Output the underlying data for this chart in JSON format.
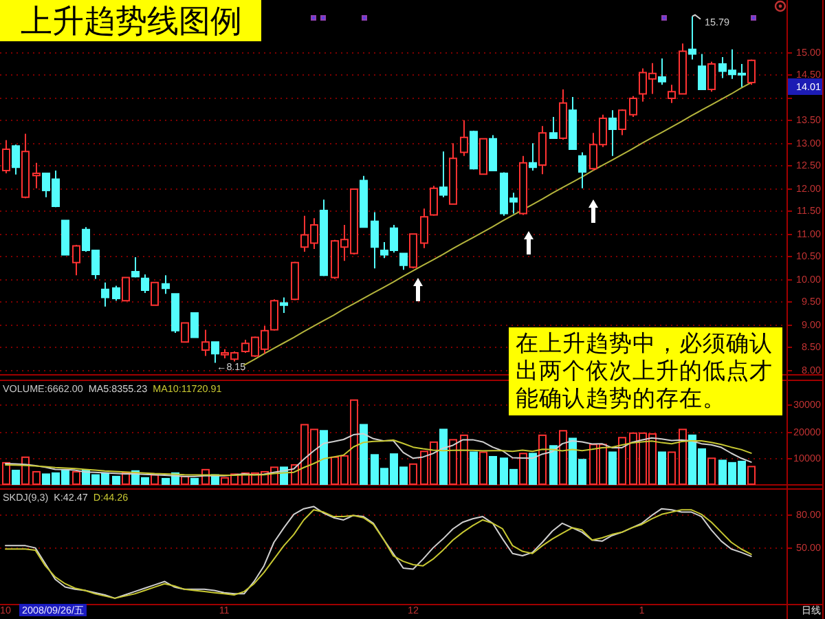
{
  "chart_data": [
    {
      "type": "candlestick",
      "title": "上升趋势线图例",
      "categories": [
        null,
        null,
        null,
        null,
        null,
        null,
        null,
        null,
        null,
        null,
        null,
        null,
        null,
        null,
        null,
        null,
        null,
        null,
        null,
        null,
        null,
        null,
        null,
        null,
        null,
        null,
        null,
        null,
        null,
        null,
        null,
        null,
        null,
        null,
        null,
        null,
        null,
        null,
        null,
        null,
        null,
        null,
        null,
        null,
        null,
        null,
        null,
        null,
        null,
        null,
        null,
        null,
        null,
        null,
        null,
        null,
        null,
        null,
        null,
        null,
        null,
        null,
        null,
        null,
        null,
        null,
        null,
        null,
        null,
        null,
        null,
        null,
        null,
        null,
        null,
        null
      ],
      "ohlc": [
        [
          12.39,
          13.06,
          12.33,
          12.86
        ],
        [
          12.93,
          12.96,
          12.3,
          12.46
        ],
        [
          11.8,
          13.2,
          11.78,
          12.81
        ],
        [
          12.28,
          12.56,
          12.0,
          12.33
        ],
        [
          12.33,
          12.33,
          11.8,
          11.95
        ],
        [
          12.2,
          12.39,
          11.58,
          11.6
        ],
        [
          11.29,
          11.29,
          10.52,
          10.53
        ],
        [
          10.36,
          10.75,
          10.08,
          10.73
        ],
        [
          11.09,
          11.14,
          10.6,
          10.63
        ],
        [
          10.63,
          10.63,
          10.0,
          10.1
        ],
        [
          9.77,
          9.92,
          9.39,
          9.59
        ],
        [
          9.8,
          9.85,
          9.52,
          9.57
        ],
        [
          9.52,
          10.03,
          9.52,
          10.03
        ],
        [
          10.16,
          10.48,
          10.03,
          10.05
        ],
        [
          10.01,
          10.1,
          9.69,
          9.75
        ],
        [
          9.42,
          9.93,
          9.42,
          9.92
        ],
        [
          9.89,
          10.08,
          9.67,
          9.79
        ],
        [
          9.67,
          9.67,
          8.81,
          8.86
        ],
        [
          8.61,
          9.03,
          8.61,
          9.03
        ],
        [
          9.25,
          9.25,
          8.71,
          8.71
        ],
        [
          8.43,
          8.88,
          8.3,
          8.61
        ],
        [
          8.61,
          8.61,
          8.15,
          8.35
        ],
        [
          8.33,
          8.45,
          8.25,
          8.37
        ],
        [
          8.23,
          8.4,
          8.18,
          8.37
        ],
        [
          8.4,
          8.66,
          8.37,
          8.58
        ],
        [
          8.3,
          8.73,
          8.28,
          8.71
        ],
        [
          8.45,
          8.96,
          8.35,
          8.86
        ],
        [
          8.88,
          9.55,
          8.86,
          9.52
        ],
        [
          9.47,
          9.59,
          9.25,
          9.42
        ],
        [
          9.55,
          10.38,
          9.53,
          10.36
        ],
        [
          10.7,
          11.39,
          10.6,
          10.97
        ],
        [
          10.79,
          11.34,
          10.66,
          11.19
        ],
        [
          11.51,
          11.75,
          10.06,
          10.08
        ],
        [
          10.03,
          10.86,
          10.0,
          10.84
        ],
        [
          10.7,
          11.19,
          10.4,
          10.87
        ],
        [
          10.56,
          11.98,
          10.54,
          11.98
        ],
        [
          12.17,
          12.27,
          11.14,
          11.14
        ],
        [
          11.27,
          11.47,
          10.23,
          10.7
        ],
        [
          10.63,
          10.81,
          10.46,
          10.53
        ],
        [
          11.12,
          11.19,
          10.58,
          10.63
        ],
        [
          10.56,
          10.56,
          10.2,
          10.3
        ],
        [
          10.26,
          10.99,
          10.23,
          10.99
        ],
        [
          10.79,
          11.55,
          10.68,
          11.37
        ],
        [
          11.41,
          12.05,
          11.39,
          12.0
        ],
        [
          12.02,
          12.81,
          11.8,
          11.85
        ],
        [
          11.65,
          12.99,
          11.64,
          12.66
        ],
        [
          12.79,
          13.5,
          12.71,
          13.12
        ],
        [
          13.25,
          13.27,
          12.41,
          12.43
        ],
        [
          12.31,
          13.09,
          12.31,
          13.09
        ],
        [
          13.09,
          13.17,
          12.39,
          12.39
        ],
        [
          12.33,
          12.35,
          11.39,
          11.44
        ],
        [
          11.78,
          11.9,
          11.44,
          11.7
        ],
        [
          11.44,
          12.71,
          11.41,
          12.56
        ],
        [
          12.56,
          12.99,
          12.39,
          12.46
        ],
        [
          12.51,
          13.37,
          12.31,
          13.22
        ],
        [
          13.22,
          13.57,
          13.09,
          13.1
        ],
        [
          13.1,
          14.18,
          13.07,
          13.88
        ],
        [
          13.72,
          14.01,
          12.86,
          12.86
        ],
        [
          12.71,
          12.79,
          12.0,
          12.36
        ],
        [
          12.43,
          13.22,
          12.39,
          12.96
        ],
        [
          12.96,
          13.62,
          12.91,
          13.54
        ],
        [
          13.54,
          13.72,
          12.71,
          13.3
        ],
        [
          13.3,
          13.74,
          13.17,
          13.72
        ],
        [
          13.62,
          14.03,
          13.57,
          13.98
        ],
        [
          14.08,
          14.64,
          13.91,
          14.55
        ],
        [
          14.41,
          14.76,
          14.08,
          14.53
        ],
        [
          14.45,
          14.86,
          14.28,
          14.35
        ],
        [
          13.98,
          14.28,
          13.88,
          14.13
        ],
        [
          14.08,
          15.19,
          14.08,
          15.02
        ],
        [
          15.06,
          15.79,
          14.84,
          14.96
        ],
        [
          14.69,
          14.96,
          14.18,
          14.18
        ],
        [
          14.18,
          14.79,
          14.13,
          14.74
        ],
        [
          14.74,
          14.89,
          14.43,
          14.58
        ],
        [
          14.6,
          15.06,
          14.41,
          14.51
        ],
        [
          14.53,
          14.74,
          14.23,
          14.5
        ],
        [
          14.33,
          14.84,
          14.28,
          14.82
        ]
      ],
      "colors": [
        "#ff3232",
        "#54fcfc",
        "#ff3232",
        "#ff3232",
        "#54fcfc",
        "#54fcfc",
        "#54fcfc",
        "#ff3232",
        "#54fcfc",
        "#54fcfc",
        "#54fcfc",
        "#54fcfc",
        "#ff3232",
        "#54fcfc",
        "#54fcfc",
        "#ff3232",
        "#54fcfc",
        "#54fcfc",
        "#ff3232",
        "#54fcfc",
        "#ff3232",
        "#54fcfc",
        "#ff3232",
        "#ff3232",
        "#ff3232",
        "#ff3232",
        "#ff3232",
        "#ff3232",
        "#54fcfc",
        "#ff3232",
        "#ff3232",
        "#ff3232",
        "#54fcfc",
        "#ff3232",
        "#ff3232",
        "#ff3232",
        "#54fcfc",
        "#54fcfc",
        "#54fcfc",
        "#54fcfc",
        "#54fcfc",
        "#ff3232",
        "#ff3232",
        "#ff3232",
        "#54fcfc",
        "#ff3232",
        "#ff3232",
        "#54fcfc",
        "#ff3232",
        "#54fcfc",
        "#54fcfc",
        "#54fcfc",
        "#ff3232",
        "#54fcfc",
        "#ff3232",
        "#54fcfc",
        "#ff3232",
        "#54fcfc",
        "#54fcfc",
        "#ff3232",
        "#ff3232",
        "#54fcfc",
        "#ff3232",
        "#ff3232",
        "#ff3232",
        "#ff3232",
        "#54fcfc",
        "#ff3232",
        "#ff3232",
        "#54fcfc",
        "#54fcfc",
        "#ff3232",
        "#54fcfc",
        "#54fcfc",
        "#54fcfc",
        "#ff3232"
      ],
      "ylim": [
        7.9,
        16.15
      ],
      "yticks": [
        {
          "value": 8,
          "label": "8.00"
        },
        {
          "value": 8.5,
          "label": "8.50"
        },
        {
          "value": 9,
          "label": "9.00"
        },
        {
          "value": 9.5,
          "label": "9.50"
        },
        {
          "value": 10,
          "label": "10.00"
        },
        {
          "value": 10.5,
          "label": "10.50"
        },
        {
          "value": 11,
          "label": "11.00"
        },
        {
          "value": 11.5,
          "label": "11.50"
        },
        {
          "value": 12,
          "label": "12.00"
        },
        {
          "value": 12.5,
          "label": "12.50"
        },
        {
          "value": 13,
          "label": "13.00"
        },
        {
          "value": 13.5,
          "label": "13.50"
        },
        {
          "value": 14,
          "label": null
        },
        {
          "value": 14.5,
          "label": "14.50"
        },
        {
          "value": 15,
          "label": "15.00"
        }
      ],
      "grid": "y",
      "tick_labels": "y",
      "series": [
        {
          "type": "line",
          "color": "#b4b43c",
          "values": [
            null,
            null,
            null,
            null,
            null,
            null,
            null,
            null,
            null,
            null,
            null,
            null,
            null,
            null,
            null,
            null,
            null,
            null,
            null,
            null,
            null,
            null,
            null,
            null,
            8.1,
            8.22,
            8.35,
            8.47,
            8.59,
            8.71,
            8.84,
            8.96,
            9.08,
            9.2,
            9.33,
            9.45,
            9.57,
            9.69,
            9.81,
            9.93,
            10.06,
            10.18,
            10.3,
            10.42,
            10.54,
            10.67,
            10.79,
            10.91,
            11.03,
            11.15,
            11.28,
            11.4,
            11.52,
            11.64,
            11.76,
            11.89,
            12.01,
            12.13,
            12.25,
            12.38,
            12.5,
            12.62,
            12.74,
            12.86,
            12.99,
            13.11,
            13.23,
            13.35,
            13.47,
            13.6,
            13.72,
            13.84,
            13.96,
            14.08,
            14.21,
            14.33
          ]
        }
      ],
      "annotations": [
        "15.79",
        "←8.15",
        "14.01",
        "在上升趋势中，必须确认出两个依次上升的低点才能确认趋势的存在。"
      ]
    },
    {
      "type": "bar",
      "title": "VOLUME:6662.00",
      "categories": [
        null,
        null,
        null,
        null,
        null,
        null,
        null,
        null,
        null,
        null,
        null,
        null,
        null,
        null,
        null,
        null,
        null,
        null,
        null,
        null,
        null,
        null,
        null,
        null,
        null,
        null,
        null,
        null,
        null,
        null,
        null,
        null,
        null,
        null,
        null,
        null,
        null,
        null,
        null,
        null,
        null,
        null,
        null,
        null,
        null,
        null,
        null,
        null,
        null,
        null,
        null,
        null,
        null,
        null,
        null,
        null,
        null,
        null,
        null,
        null,
        null,
        null,
        null,
        null,
        null,
        null,
        null,
        null,
        null,
        null,
        null,
        null,
        null,
        null,
        null,
        null
      ],
      "ylim": [
        0,
        39000
      ],
      "yticks": [
        10000,
        20000,
        30000
      ],
      "grid": "y",
      "tick_labels": "y",
      "legend": "top left",
      "series": [
        {
          "colors": [
            "#ff3232",
            "#54fcfc",
            "#ff3232",
            "#ff3232",
            "#54fcfc",
            "#54fcfc",
            "#54fcfc",
            "#ff3232",
            "#54fcfc",
            "#54fcfc",
            "#54fcfc",
            "#54fcfc",
            "#ff3232",
            "#54fcfc",
            "#54fcfc",
            "#ff3232",
            "#54fcfc",
            "#54fcfc",
            "#ff3232",
            "#54fcfc",
            "#ff3232",
            "#54fcfc",
            "#ff3232",
            "#ff3232",
            "#ff3232",
            "#ff3232",
            "#ff3232",
            "#ff3232",
            "#54fcfc",
            "#ff3232",
            "#ff3232",
            "#ff3232",
            "#54fcfc",
            "#ff3232",
            "#ff3232",
            "#ff3232",
            "#54fcfc",
            "#54fcfc",
            "#54fcfc",
            "#54fcfc",
            "#54fcfc",
            "#ff3232",
            "#ff3232",
            "#ff3232",
            "#54fcfc",
            "#ff3232",
            "#ff3232",
            "#54fcfc",
            "#ff3232",
            "#54fcfc",
            "#54fcfc",
            "#54fcfc",
            "#ff3232",
            "#54fcfc",
            "#ff3232",
            "#54fcfc",
            "#ff3232",
            "#54fcfc",
            "#54fcfc",
            "#ff3232",
            "#ff3232",
            "#54fcfc",
            "#ff3232",
            "#ff3232",
            "#ff3232",
            "#ff3232",
            "#54fcfc",
            "#ff3232",
            "#ff3232",
            "#54fcfc",
            "#54fcfc",
            "#ff3232",
            "#54fcfc",
            "#54fcfc",
            "#54fcfc",
            "#ff3232"
          ],
          "values": [
            8100,
            5200,
            10200,
            4700,
            3800,
            4200,
            5200,
            4700,
            5200,
            3500,
            4200,
            2900,
            4200,
            5000,
            2400,
            3500,
            2100,
            4200,
            2900,
            2100,
            5500,
            3500,
            2400,
            3800,
            4200,
            4200,
            4700,
            6400,
            6400,
            7300,
            22500,
            20700,
            20200,
            10200,
            10700,
            31800,
            22500,
            11100,
            5900,
            11400,
            6400,
            7600,
            12400,
            15900,
            20700,
            16800,
            18500,
            12100,
            12100,
            10400,
            9800,
            5500,
            11600,
            11600,
            18500,
            14500,
            20200,
            17300,
            9300,
            15000,
            15000,
            12100,
            17600,
            19300,
            19300,
            19000,
            12100,
            12100,
            20700,
            18500,
            13300,
            9800,
            9000,
            8100,
            8600,
            6662
          ]
        },
        {
          "type": "line",
          "name": "MA5:8355.23",
          "color": "#d0d0d0",
          "values": [
            7800,
            7700,
            7500,
            7000,
            6400,
            5600,
            5500,
            5300,
            4600,
            4500,
            4300,
            4100,
            3900,
            3900,
            3700,
            3600,
            3400,
            3200,
            2900,
            2900,
            3200,
            3200,
            3200,
            3500,
            3900,
            3600,
            3800,
            4500,
            5100,
            5800,
            9400,
            12600,
            15400,
            16100,
            16900,
            18700,
            19100,
            17200,
            16400,
            16500,
            12000,
            9800,
            10300,
            11600,
            13600,
            14700,
            16800,
            16800,
            16000,
            14000,
            12600,
            10000,
            9900,
            9800,
            11400,
            12300,
            15300,
            16400,
            16000,
            15200,
            15300,
            13800,
            13800,
            15800,
            16700,
            17500,
            17100,
            16500,
            16700,
            16400,
            15300,
            14900,
            13900,
            11700,
            9800,
            8355.23
          ]
        },
        {
          "type": "line",
          "name": "MA10:11720.91",
          "color": "#c8c832",
          "values": [
            7300,
            7200,
            7100,
            6900,
            6600,
            6300,
            6100,
            5900,
            5600,
            5300,
            5000,
            4800,
            4600,
            4400,
            4200,
            4000,
            3900,
            3800,
            3600,
            3500,
            3500,
            3500,
            3400,
            3400,
            3500,
            3500,
            3600,
            4000,
            4300,
            4500,
            6300,
            7800,
            9600,
            10300,
            11000,
            14100,
            15800,
            16200,
            16300,
            16700,
            15400,
            14000,
            13400,
            12900,
            12700,
            12800,
            12900,
            12800,
            12600,
            12700,
            12700,
            12400,
            12900,
            12400,
            13200,
            13100,
            12600,
            13100,
            12700,
            13200,
            13800,
            14000,
            14800,
            15600,
            16000,
            16300,
            15700,
            15300,
            16100,
            16400,
            16400,
            15800,
            15000,
            14000,
            13100,
            11720.91
          ]
        }
      ]
    },
    {
      "type": "line",
      "title": "SKDJ(9,3)",
      "categories": [
        "10",
        null,
        null,
        null,
        null,
        null,
        null,
        null,
        null,
        null,
        null,
        null,
        null,
        null,
        null,
        null,
        null,
        null,
        null,
        null,
        null,
        null,
        "11",
        null,
        null,
        null,
        null,
        null,
        null,
        null,
        null,
        null,
        null,
        null,
        null,
        null,
        null,
        null,
        null,
        null,
        null,
        "12",
        null,
        null,
        null,
        null,
        null,
        null,
        null,
        null,
        null,
        null,
        null,
        null,
        null,
        null,
        null,
        null,
        null,
        null,
        null,
        null,
        null,
        null,
        "1",
        null,
        null,
        null,
        null,
        null,
        null,
        null,
        null,
        null,
        null,
        null
      ],
      "ylim": [
        0,
        102
      ],
      "yticks": [
        {
          "value": 50,
          "label": "50.00"
        },
        {
          "value": 80,
          "label": "80.00"
        }
      ],
      "grid": "y",
      "legend": "top left",
      "series": [
        {
          "name": "K:42.47",
          "color": "#d0d0d0",
          "values": [
            52,
            52,
            52,
            50,
            36,
            22,
            15,
            13,
            12,
            10,
            8,
            5,
            8,
            11,
            14,
            17,
            20,
            15,
            13,
            13,
            13,
            12,
            10,
            9,
            9,
            20,
            34,
            55,
            68,
            80,
            85,
            87,
            81,
            77,
            75,
            79,
            78,
            72,
            58,
            45,
            32,
            31,
            40,
            50,
            58,
            67,
            73,
            76,
            78,
            72,
            58,
            45,
            43,
            46,
            55,
            65,
            72,
            68,
            64,
            57,
            56,
            61,
            64,
            68,
            72,
            79,
            85,
            84,
            82,
            82,
            78,
            66,
            56,
            49,
            46,
            42.47
          ]
        },
        {
          "name": "D:44.26",
          "color": "#c8c832",
          "values": [
            49,
            49,
            49,
            48,
            34,
            24,
            18,
            14,
            12,
            9,
            7,
            5,
            7,
            9,
            12,
            15,
            18,
            16,
            13,
            12,
            11,
            10,
            9,
            8,
            11,
            18,
            28,
            40,
            52,
            62,
            75,
            84,
            82,
            78,
            78,
            79,
            77,
            71,
            58,
            43,
            38,
            35,
            34,
            40,
            48,
            57,
            64,
            70,
            75,
            72,
            67,
            52,
            47,
            45,
            52,
            58,
            63,
            68,
            66,
            57,
            59,
            62,
            64,
            68,
            71,
            76,
            80,
            82,
            84,
            84,
            80,
            73,
            64,
            55,
            49,
            44.26
          ]
        }
      ],
      "annotations": [
        "2008/09/26/五",
        "日线"
      ]
    }
  ]
}
